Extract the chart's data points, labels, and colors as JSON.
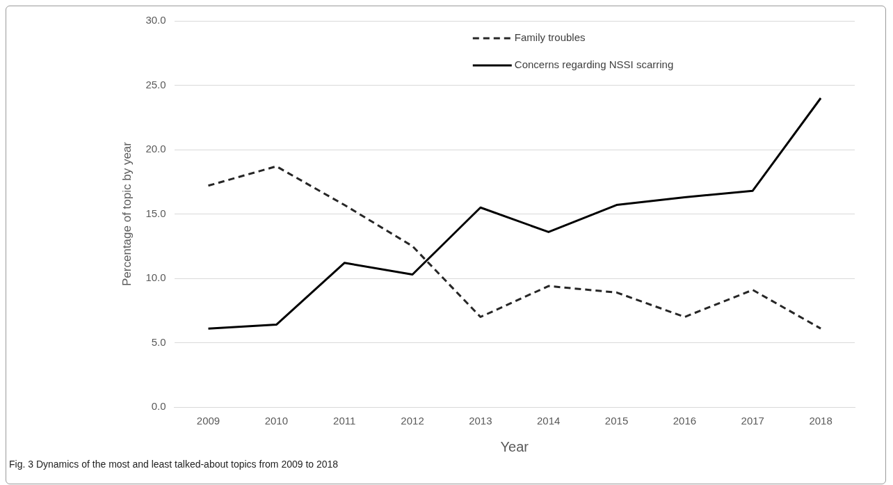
{
  "chart_data": {
    "type": "line",
    "xlabel": "Year",
    "ylabel": "Percentage of topic by year",
    "annotations": [
      "Fig. 3  Dynamics of the most and least talked-about topics from 2009 to 2018"
    ],
    "categories": [
      "2009",
      "2010",
      "2011",
      "2012",
      "2013",
      "2014",
      "2015",
      "2016",
      "2017",
      "2018"
    ],
    "series": [
      {
        "name": "Family troubles",
        "color": "#262626",
        "line_style": "dashed",
        "values": [
          17.2,
          18.7,
          15.7,
          12.5,
          7.0,
          9.4,
          8.9,
          7.0,
          9.1,
          6.1
        ]
      },
      {
        "name": "Concerns regarding NSSI scarring",
        "color": "#000000",
        "line_style": "solid",
        "values": [
          6.1,
          6.4,
          11.2,
          10.3,
          15.5,
          13.6,
          15.7,
          16.3,
          16.8,
          24.0
        ]
      }
    ],
    "ylim": [
      0,
      30
    ],
    "yticks": [
      {
        "value": 0,
        "label": "0.0"
      },
      {
        "value": 5,
        "label": "5.0"
      },
      {
        "value": 10,
        "label": "10.0"
      },
      {
        "value": 15,
        "label": "15.0"
      },
      {
        "value": 20,
        "label": "20.0"
      },
      {
        "value": 25,
        "label": "25.0"
      },
      {
        "value": 30,
        "label": "30.0"
      }
    ],
    "grid": "y",
    "legend": "top",
    "marker": "none"
  }
}
